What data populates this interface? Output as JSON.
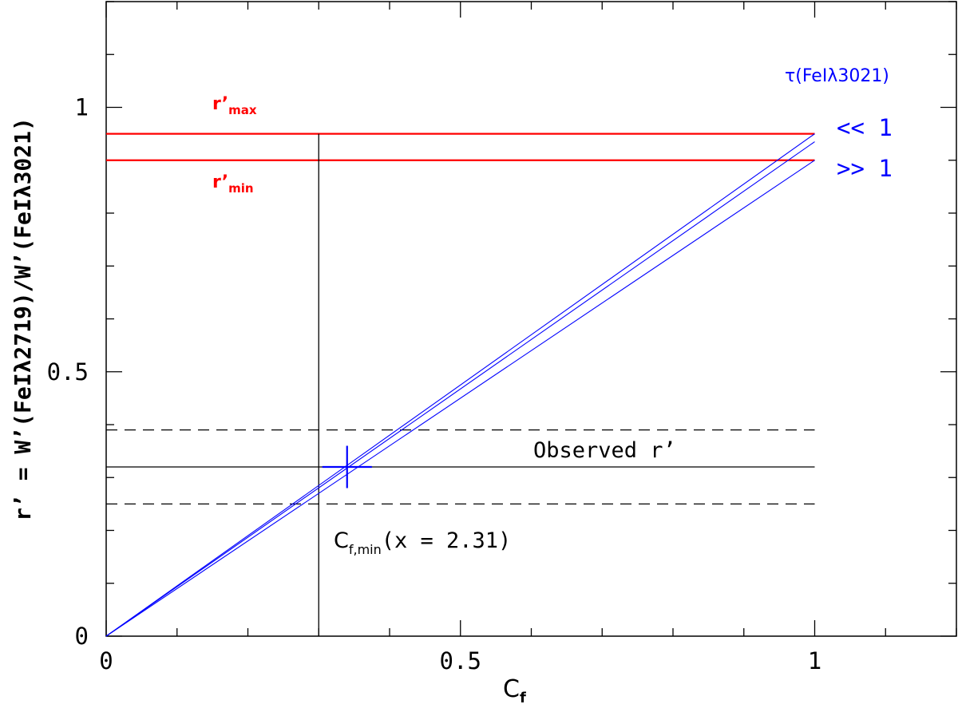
{
  "chart_data": {
    "type": "line",
    "xlabel": "C",
    "xlabel_sub": "f",
    "ylabel": "r’ = W’(FeIλ2719)/W’(FeIλ3021)",
    "xlim": [
      0,
      1.2
    ],
    "ylim": [
      0,
      1.2
    ],
    "x_ticks": [
      0,
      0.5,
      1
    ],
    "x_tick_labels": [
      "0",
      "0.5",
      "1"
    ],
    "y_ticks": [
      0,
      0.5,
      1
    ],
    "y_tick_labels": [
      "0",
      "0.5",
      "1"
    ],
    "grid": false,
    "colors": {
      "model_lines": "#0000ff",
      "ratio_limits": "#ff0000",
      "observed": "#000000",
      "annotations": "#000000"
    },
    "series": [
      {
        "points": [
          [
            0,
            0
          ],
          [
            1,
            0.95
          ]
        ]
      },
      {
        "points": [
          [
            0,
            0
          ],
          [
            1,
            0.935
          ]
        ]
      },
      {
        "points": [
          [
            0,
            0
          ],
          [
            1,
            0.9
          ]
        ]
      }
    ],
    "reference_lines": {
      "r_max": {
        "label": "r’",
        "sub": "max",
        "y": 0.95,
        "x_range": [
          0,
          1
        ]
      },
      "r_min": {
        "label": "r’",
        "sub": "min",
        "y": 0.9,
        "x_range": [
          0,
          1
        ]
      },
      "observed": {
        "label": "Observed r’",
        "y": 0.32,
        "x_range": [
          0,
          1
        ]
      },
      "observed_upper": {
        "y": 0.39,
        "x_range": [
          0,
          1
        ],
        "style": "dashed"
      },
      "observed_lower": {
        "y": 0.25,
        "x_range": [
          0,
          1
        ],
        "style": "dashed"
      },
      "cf_min": {
        "x": 0.3,
        "y_range": [
          0,
          0.95
        ]
      }
    },
    "marker": {
      "x": 0.34,
      "y": 0.32,
      "x_err": 0.035,
      "y_err": 0.04
    },
    "annotations": {
      "cf_min_main": "C",
      "cf_min_sub": "f,min",
      "cf_min_value": "(x = 2.31)",
      "tau_label": "τ(FeIλ3021)",
      "tau_low": "<< 1",
      "tau_high": ">> 1"
    }
  }
}
